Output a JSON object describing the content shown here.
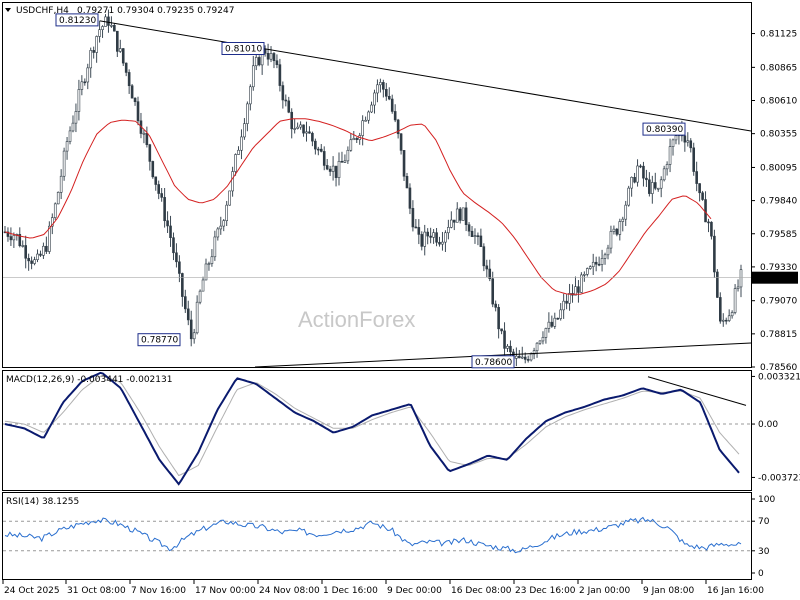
{
  "chart_data": [
    {
      "type": "candlestick",
      "title": "USDCHF,H4",
      "ohlc_header": "0.79271 0.79304 0.79235 0.79247",
      "watermark": "ActionForex",
      "ylim": [
        0.7856,
        0.8136
      ],
      "y_ticks": [
        "0.81125",
        "0.80865",
        "0.80610",
        "0.80355",
        "0.80095",
        "0.79840",
        "0.79585",
        "0.79330",
        "0.79070",
        "0.78815",
        "0.78560"
      ],
      "current_price_label": "0.79247",
      "x_tick_labels": [
        "24 Oct 2025",
        "31 Oct 08:00",
        "7 Nov 16:00",
        "17 Nov 00:00",
        "24 Nov 08:00",
        "1 Dec 16:00",
        "9 Dec 00:00",
        "16 Dec 08:00",
        "23 Dec 16:00",
        "2 Jan 00:00",
        "9 Jan 08:00",
        "16 Jan 16:00"
      ],
      "price_markers": [
        "0.81230",
        "0.81010",
        "0.80390",
        "0.78770",
        "0.78600"
      ],
      "close_path": [
        0.796,
        0.7958,
        0.7945,
        0.7935,
        0.795,
        0.7985,
        0.803,
        0.806,
        0.809,
        0.8115,
        0.8123,
        0.81,
        0.8075,
        0.8045,
        0.8015,
        0.7985,
        0.7955,
        0.7915,
        0.7877,
        0.792,
        0.7945,
        0.797,
        0.8005,
        0.8045,
        0.8085,
        0.8101,
        0.809,
        0.806,
        0.8035,
        0.804,
        0.8025,
        0.8015,
        0.8005,
        0.802,
        0.8035,
        0.8055,
        0.8075,
        0.8065,
        0.803,
        0.798,
        0.795,
        0.796,
        0.7955,
        0.797,
        0.7975,
        0.7962,
        0.7945,
        0.791,
        0.7875,
        0.7862,
        0.786,
        0.7872,
        0.7885,
        0.7888,
        0.7905,
        0.7915,
        0.7925,
        0.7935,
        0.795,
        0.7962,
        0.7985,
        0.801,
        0.7995,
        0.799,
        0.802,
        0.8039,
        0.803,
        0.7985,
        0.7965,
        0.7888,
        0.79,
        0.7925
      ],
      "ma_path": [
        0.796,
        0.7957,
        0.7955,
        0.7958,
        0.797,
        0.799,
        0.8015,
        0.8035,
        0.8044,
        0.8046,
        0.8045,
        0.8035,
        0.8015,
        0.7995,
        0.7985,
        0.7982,
        0.7985,
        0.7995,
        0.801,
        0.8025,
        0.8035,
        0.8045,
        0.8047,
        0.8047,
        0.8045,
        0.8042,
        0.8038,
        0.8033,
        0.803,
        0.8033,
        0.8037,
        0.8042,
        0.8043,
        0.803,
        0.8008,
        0.799,
        0.7982,
        0.7975,
        0.7967,
        0.7955,
        0.794,
        0.7925,
        0.7915,
        0.7912,
        0.7912,
        0.7915,
        0.792,
        0.793,
        0.7945,
        0.796,
        0.7972,
        0.7985,
        0.7988,
        0.7982,
        0.797
      ],
      "trendlines": "descending resistance from 0.81230 to 0.80390; ascending support from 0.78770 to 0.78600",
      "grid": false
    },
    {
      "type": "line",
      "title": "MACD(12,26,9) -0.003441 -0.002131",
      "ylim": [
        -0.0046,
        0.0037
      ],
      "y_ticks": [
        "0.003321",
        "0.00",
        "-0.003723"
      ],
      "zero_label": "0.00",
      "series": [
        {
          "name": "MACD",
          "values": [
            0.0,
            -0.0003,
            -0.001,
            0.0015,
            0.003,
            0.0036,
            0.0025,
            0.0,
            -0.0025,
            -0.0042,
            -0.002,
            0.001,
            0.0032,
            0.0028,
            0.0018,
            0.0008,
            0.0002,
            -0.0006,
            -0.0002,
            0.0006,
            0.001,
            0.0014,
            -0.0015,
            -0.0033,
            -0.0028,
            -0.0022,
            -0.0025,
            -0.001,
            0.0002,
            0.0008,
            0.0012,
            0.0017,
            0.002,
            0.0025,
            0.0021,
            0.0024,
            0.0015,
            -0.0018,
            -0.0034
          ]
        },
        {
          "name": "Signal",
          "values": [
            0.0002,
            0.0,
            -0.0006,
            0.0008,
            0.0024,
            0.0034,
            0.0029,
            0.0008,
            -0.0016,
            -0.0036,
            -0.0029,
            -0.0002,
            0.0024,
            0.0029,
            0.0021,
            0.0011,
            0.0004,
            -0.0003,
            -0.0003,
            0.0003,
            0.0008,
            0.0012,
            -0.0006,
            -0.0026,
            -0.0029,
            -0.0024,
            -0.0024,
            -0.0014,
            -0.0002,
            0.0005,
            0.001,
            0.0014,
            0.0018,
            0.0023,
            0.0022,
            0.0023,
            0.0018,
            -0.0006,
            -0.0021
          ]
        }
      ]
    },
    {
      "type": "line",
      "title": "RSI(14) 38.1255",
      "ylim": [
        0,
        100
      ],
      "y_ticks": [
        "100",
        "70",
        "30",
        "0"
      ],
      "levels": [
        70,
        30
      ],
      "series": [
        {
          "name": "RSI",
          "values": [
            52,
            50,
            47,
            58,
            66,
            72,
            68,
            58,
            45,
            33,
            50,
            62,
            70,
            65,
            62,
            55,
            57,
            52,
            57,
            60,
            68,
            58,
            38,
            42,
            40,
            45,
            38,
            34,
            30,
            40,
            50,
            56,
            58,
            63,
            70,
            72,
            62,
            38,
            34,
            40,
            38
          ]
        }
      ]
    }
  ]
}
